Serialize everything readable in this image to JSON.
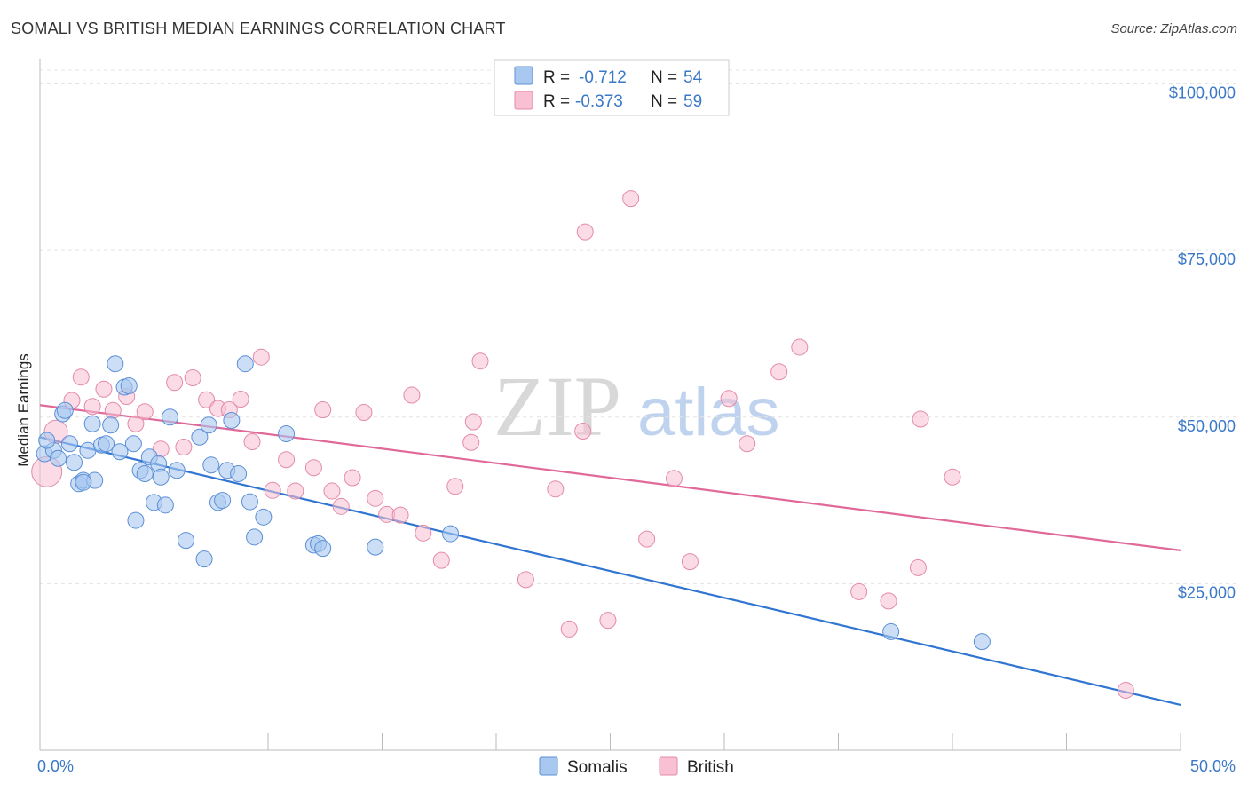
{
  "header": {
    "title": "SOMALI VS BRITISH MEDIAN EARNINGS CORRELATION CHART",
    "source": "Source: ZipAtlas.com"
  },
  "watermark": {
    "zip": "ZIP",
    "atlas": "atlas"
  },
  "legend": {
    "rows": [
      {
        "r_label": "R =",
        "r_value": "-0.712",
        "n_label": "N =",
        "n_value": "54",
        "color": "#a8c8f0"
      },
      {
        "r_label": "R =",
        "r_value": "-0.373",
        "n_label": "N =",
        "n_value": "59",
        "color": "#f8b8cc"
      }
    ]
  },
  "colors": {
    "somali_fill": "#a8c8f0",
    "somali_stroke": "#5b8fd6",
    "somali_line": "#2f75d1",
    "british_fill": "#f8c0d2",
    "british_stroke": "#e38aa8",
    "british_line": "#e0699a",
    "tick_text": "#3a78c8"
  },
  "chart_data": {
    "type": "scatter",
    "title": "SOMALI VS BRITISH MEDIAN EARNINGS CORRELATION CHART",
    "xlabel": "",
    "ylabel": "Median Earnings",
    "xlim": [
      0,
      50
    ],
    "ylim": [
      0,
      103000
    ],
    "x_tick_labels": [
      "0.0%",
      "50.0%"
    ],
    "y_ticks": [
      25000,
      50000,
      75000,
      100000
    ],
    "y_tick_labels": [
      "$25,000",
      "$50,000",
      "$75,000",
      "$100,000"
    ],
    "grid": true,
    "legend_position": "top-center",
    "series": [
      {
        "name": "Somalis",
        "trend": {
          "x": [
            0,
            50
          ],
          "y": [
            47000,
            6800
          ]
        },
        "points": [
          [
            0.2,
            44500
          ],
          [
            0.6,
            45000
          ],
          [
            0.8,
            43800
          ],
          [
            1.0,
            50500
          ],
          [
            1.1,
            51000
          ],
          [
            1.3,
            46000
          ],
          [
            1.5,
            43200
          ],
          [
            1.7,
            40000
          ],
          [
            1.9,
            40500
          ],
          [
            2.1,
            45000
          ],
          [
            2.3,
            49000
          ],
          [
            2.4,
            40500
          ],
          [
            2.7,
            45800
          ],
          [
            2.9,
            46000
          ],
          [
            3.1,
            48800
          ],
          [
            3.3,
            58000
          ],
          [
            3.5,
            44800
          ],
          [
            3.7,
            54500
          ],
          [
            3.9,
            54700
          ],
          [
            4.1,
            46000
          ],
          [
            4.2,
            34500
          ],
          [
            4.4,
            42000
          ],
          [
            4.6,
            41500
          ],
          [
            4.8,
            44000
          ],
          [
            5.0,
            37200
          ],
          [
            5.2,
            43000
          ],
          [
            5.3,
            41000
          ],
          [
            5.5,
            36800
          ],
          [
            5.7,
            50000
          ],
          [
            6.0,
            42000
          ],
          [
            6.4,
            31500
          ],
          [
            7.2,
            28700
          ],
          [
            7.0,
            47000
          ],
          [
            7.5,
            42800
          ],
          [
            7.4,
            48800
          ],
          [
            7.8,
            37200
          ],
          [
            8.0,
            37500
          ],
          [
            8.2,
            42000
          ],
          [
            8.4,
            49500
          ],
          [
            8.7,
            41500
          ],
          [
            9.0,
            58000
          ],
          [
            9.2,
            37300
          ],
          [
            9.4,
            32000
          ],
          [
            9.8,
            35000
          ],
          [
            10.8,
            47500
          ],
          [
            12.0,
            30800
          ],
          [
            12.2,
            31000
          ],
          [
            12.4,
            30300
          ],
          [
            14.7,
            30500
          ],
          [
            18.0,
            32500
          ],
          [
            37.3,
            17800
          ],
          [
            41.3,
            16300
          ],
          [
            0.3,
            46500
          ],
          [
            1.9,
            40200
          ]
        ]
      },
      {
        "name": "British",
        "trend": {
          "x": [
            0,
            50
          ],
          "y": [
            51800,
            30000
          ]
        },
        "points": [
          [
            0.3,
            41800
          ],
          [
            0.7,
            47800
          ],
          [
            1.4,
            52500
          ],
          [
            1.8,
            56000
          ],
          [
            2.3,
            51600
          ],
          [
            2.8,
            54200
          ],
          [
            3.2,
            51000
          ],
          [
            3.8,
            53100
          ],
          [
            4.2,
            49000
          ],
          [
            4.6,
            50800
          ],
          [
            5.3,
            45200
          ],
          [
            5.9,
            55200
          ],
          [
            6.3,
            45500
          ],
          [
            6.7,
            55900
          ],
          [
            7.3,
            52600
          ],
          [
            7.8,
            51300
          ],
          [
            8.3,
            51100
          ],
          [
            8.8,
            52700
          ],
          [
            9.3,
            46300
          ],
          [
            9.7,
            59000
          ],
          [
            10.2,
            39000
          ],
          [
            10.8,
            43600
          ],
          [
            11.2,
            38900
          ],
          [
            12.0,
            42400
          ],
          [
            12.4,
            51100
          ],
          [
            12.8,
            38900
          ],
          [
            13.2,
            36600
          ],
          [
            13.7,
            40900
          ],
          [
            14.2,
            50700
          ],
          [
            14.7,
            37800
          ],
          [
            15.2,
            35400
          ],
          [
            15.8,
            35300
          ],
          [
            16.3,
            53300
          ],
          [
            16.8,
            32600
          ],
          [
            17.6,
            28500
          ],
          [
            18.2,
            39600
          ],
          [
            18.9,
            46200
          ],
          [
            19.3,
            58400
          ],
          [
            19.0,
            49300
          ],
          [
            21.3,
            25600
          ],
          [
            22.6,
            39200
          ],
          [
            23.2,
            18200
          ],
          [
            23.8,
            47900
          ],
          [
            23.9,
            77800
          ],
          [
            24.9,
            19500
          ],
          [
            25.9,
            82800
          ],
          [
            26.6,
            31700
          ],
          [
            27.8,
            40800
          ],
          [
            28.5,
            28300
          ],
          [
            30.2,
            52800
          ],
          [
            31.0,
            46000
          ],
          [
            32.4,
            56800
          ],
          [
            33.3,
            60500
          ],
          [
            35.9,
            23800
          ],
          [
            37.2,
            22400
          ],
          [
            38.5,
            27400
          ],
          [
            38.6,
            49700
          ],
          [
            40.0,
            41000
          ],
          [
            47.6,
            9000
          ]
        ]
      }
    ]
  },
  "bottom_legend": {
    "items": [
      {
        "label": "Somalis"
      },
      {
        "label": "British"
      }
    ]
  }
}
